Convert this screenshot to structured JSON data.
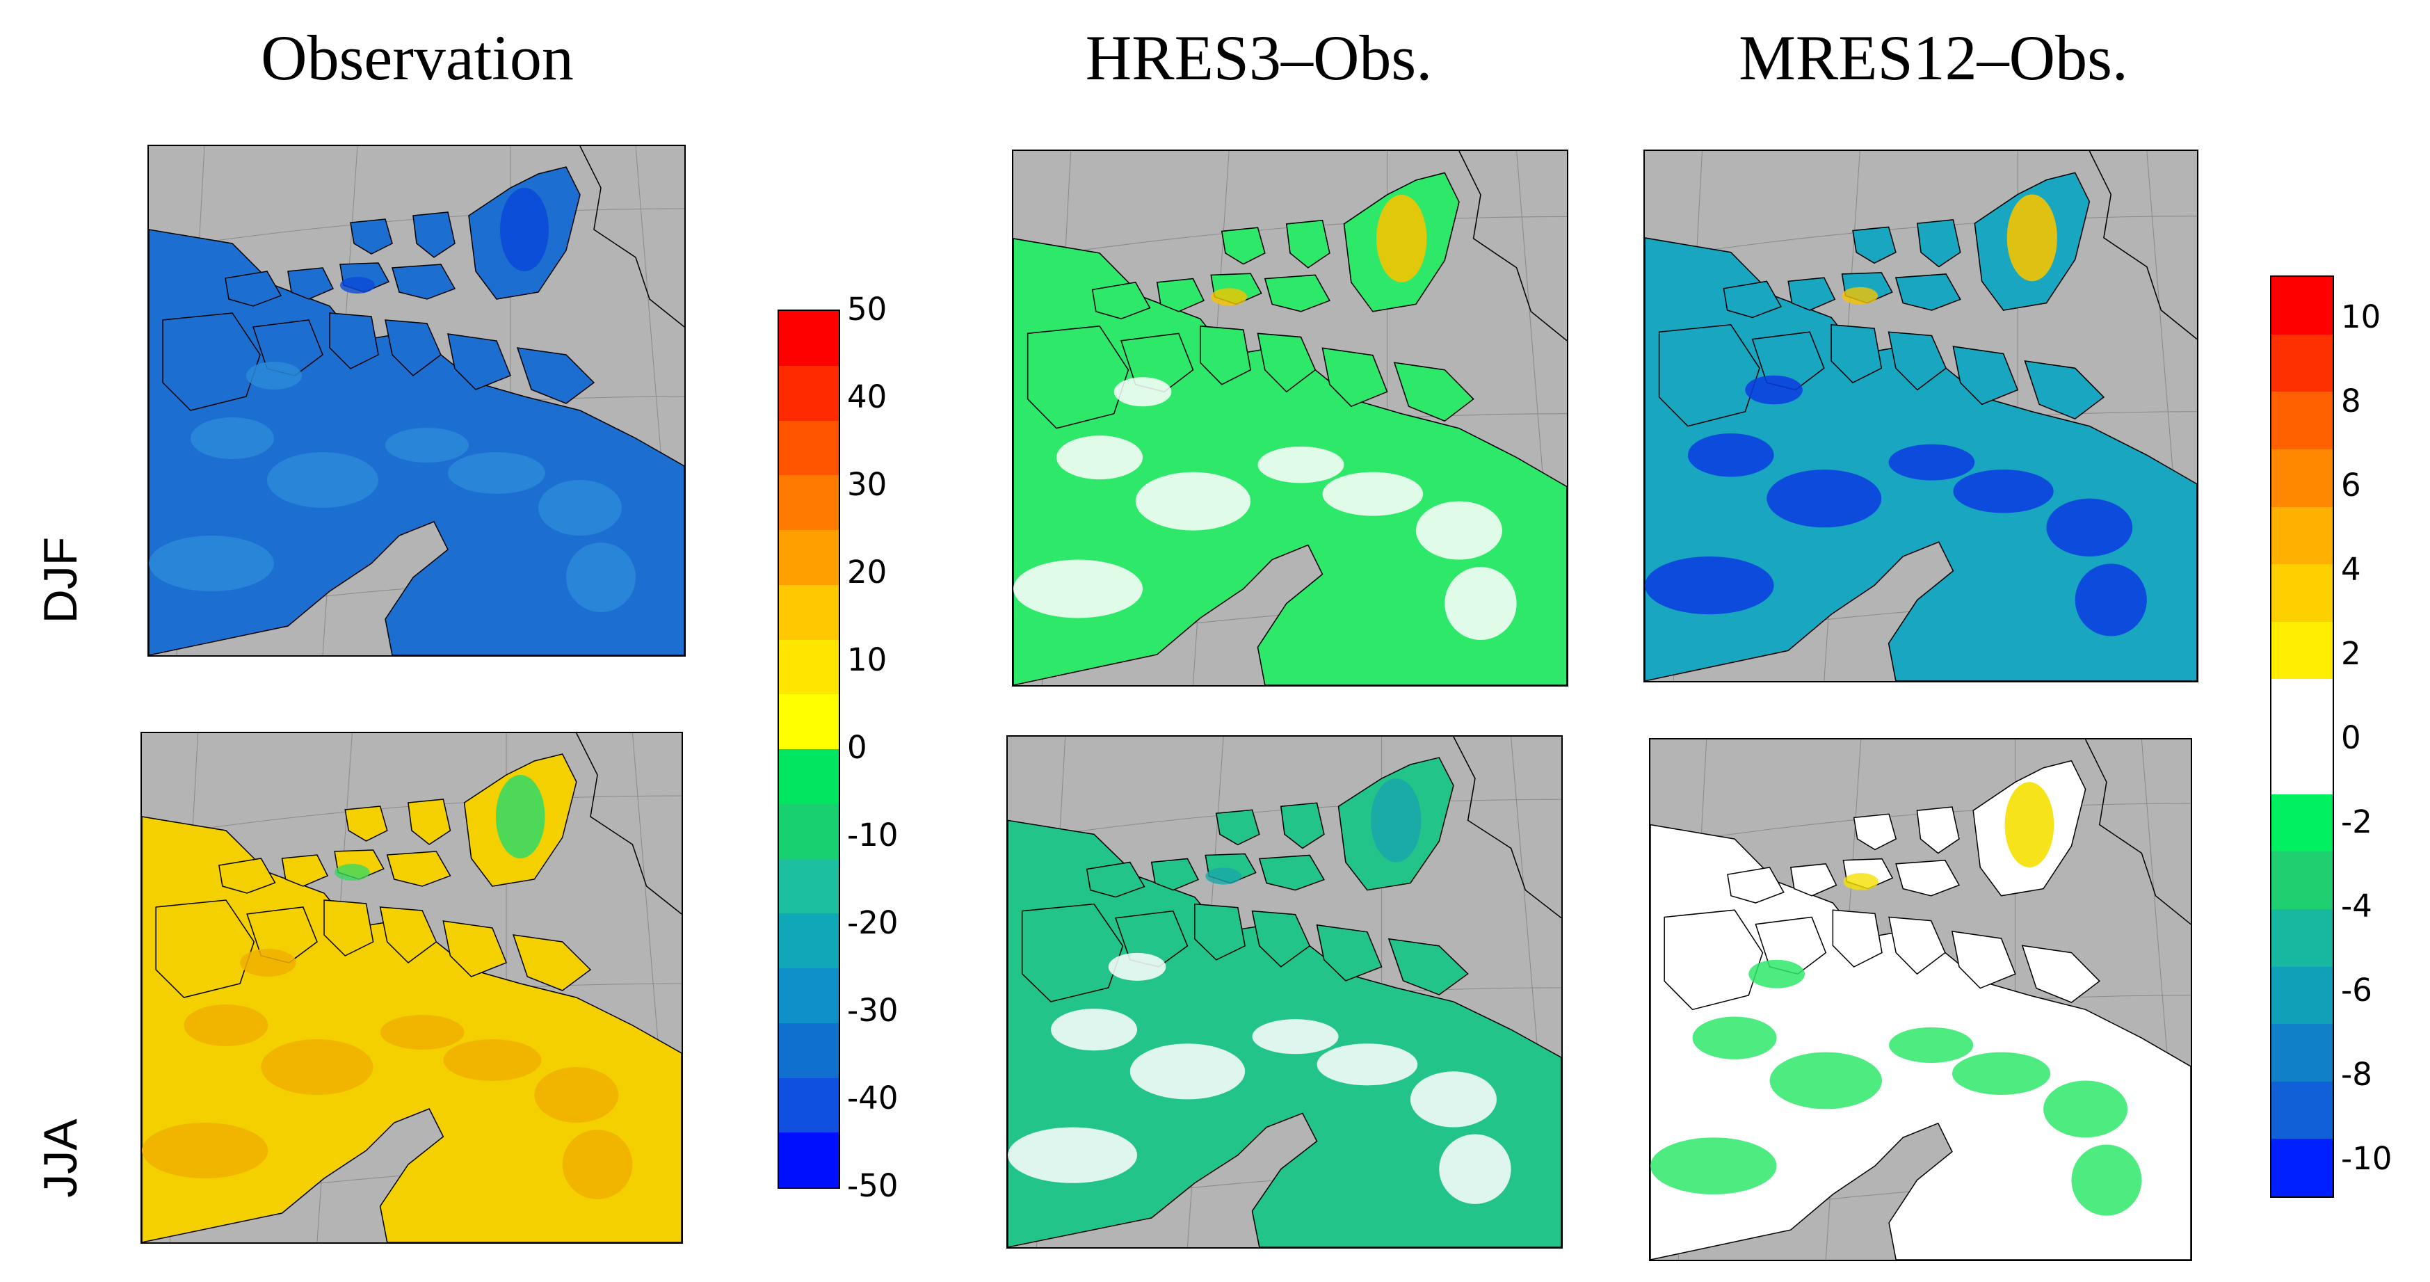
{
  "titles": {
    "observation": "Observation",
    "hres": "HRES3–Obs.",
    "mres": "MRES12–Obs."
  },
  "rows": {
    "djf": "DJF",
    "jja": "JJA"
  },
  "panels": [
    {
      "name": "panel-observation-djf",
      "land": "#1c6fd0",
      "land2": "#2a8ad8",
      "accent": "#0b4ad8"
    },
    {
      "name": "panel-observation-jja",
      "land": "#f5d000",
      "land2": "#f0b000",
      "accent": "#3bd860"
    },
    {
      "name": "panel-hres3-djf",
      "land": "#2ee86a",
      "land2": "#ffffff",
      "accent": "#f5c400"
    },
    {
      "name": "panel-hres3-jja",
      "land": "#22c48a",
      "land2": "#ffffff",
      "accent": "#1aa8a8"
    },
    {
      "name": "panel-mres12-djf",
      "land": "#19a6c0",
      "land2": "#0b3be0",
      "accent": "#f5c400"
    },
    {
      "name": "panel-mres12-jja",
      "land": "#ffffff",
      "land2": "#2ee86a",
      "accent": "#f5e000"
    }
  ],
  "colorbar_left": {
    "ticks": [
      "50",
      "40",
      "30",
      "20",
      "10",
      "0",
      "-10",
      "-20",
      "-30",
      "-40",
      "-50"
    ],
    "colors": [
      "#ff0000",
      "#ff2a00",
      "#ff5500",
      "#ff7a00",
      "#ffa000",
      "#ffc800",
      "#ffe600",
      "#ffff00",
      "#00e660",
      "#18d070",
      "#1cc0a0",
      "#10a8b8",
      "#1090c8",
      "#1070d0",
      "#1050e0",
      "#0010ff"
    ]
  },
  "colorbar_right": {
    "ticks": [
      "10",
      "8",
      "6",
      "4",
      "2",
      "0",
      "-2",
      "-4",
      "-6",
      "-8",
      "-10"
    ],
    "colors": [
      "#ff0000",
      "#ff3000",
      "#ff6000",
      "#ff8800",
      "#ffb000",
      "#ffd000",
      "#ffee00",
      "#ffffff",
      "#ffffff",
      "#00f060",
      "#20d070",
      "#18b8a0",
      "#10a0b8",
      "#1080c8",
      "#1060d8",
      "#0020ff"
    ]
  }
}
